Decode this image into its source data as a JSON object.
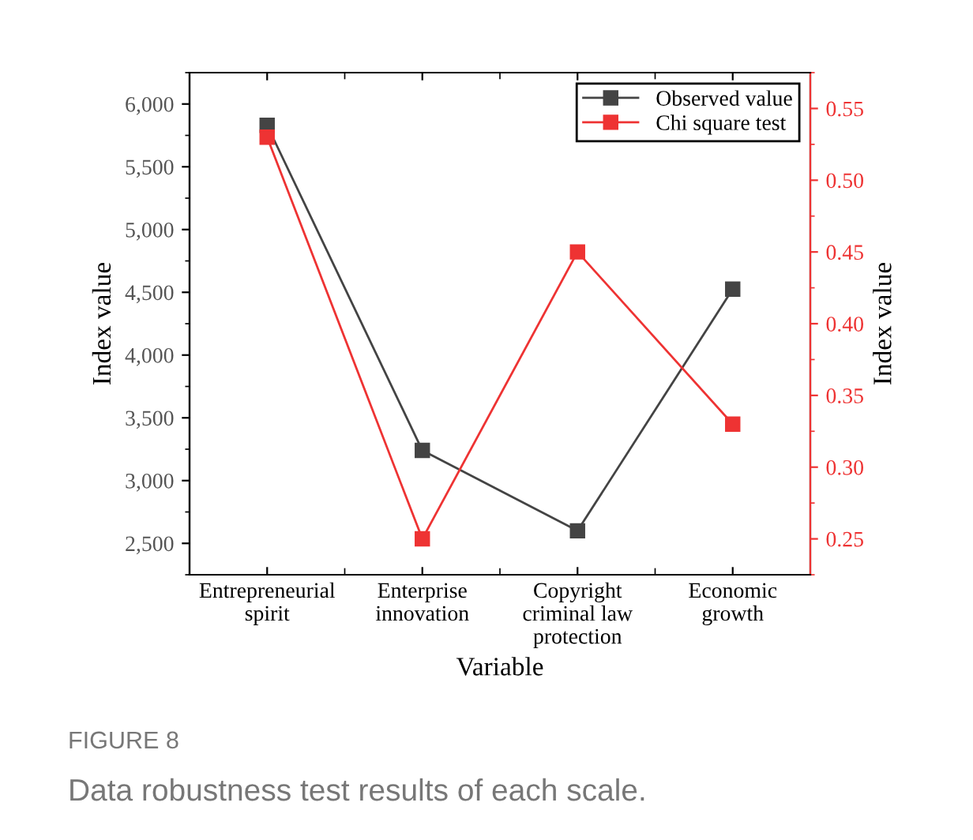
{
  "chart_data": {
    "type": "line",
    "xlabel": "Variable",
    "ylabel": "Index value",
    "y2label": "Index value",
    "categories": [
      "Entrepreneurial\nspirit",
      "Enterprise\ninnovation",
      "Copyright\ncriminal law\nprotection",
      "Economic\ngrowth"
    ],
    "series": [
      {
        "name": "Observed value",
        "color": "#444444",
        "values": [
          5830,
          3240,
          2600,
          4525
        ]
      },
      {
        "name": "Chi square test",
        "color": "#ee3333",
        "axis": "y2",
        "values": [
          0.53,
          0.25,
          0.45,
          0.33
        ]
      }
    ],
    "ylim": [
      2250,
      6250
    ],
    "yticks": [
      {
        "value": 2500,
        "label": "2,500"
      },
      {
        "value": 3000,
        "label": "3,000"
      },
      {
        "value": 3500,
        "label": "3,500"
      },
      {
        "value": 4000,
        "label": "4,000"
      },
      {
        "value": 4500,
        "label": "4,500"
      },
      {
        "value": 5000,
        "label": "5,000"
      },
      {
        "value": 5500,
        "label": "5,500"
      },
      {
        "value": 6000,
        "label": "6,000"
      }
    ],
    "y2lim": [
      0.225,
      0.575
    ],
    "y2ticks": [
      {
        "value": 0.25,
        "label": "0.25"
      },
      {
        "value": 0.3,
        "label": "0.30"
      },
      {
        "value": 0.35,
        "label": "0.35"
      },
      {
        "value": 0.4,
        "label": "0.40"
      },
      {
        "value": 0.45,
        "label": "0.45"
      },
      {
        "value": 0.5,
        "label": "0.50"
      },
      {
        "value": 0.55,
        "label": "0.55"
      }
    ],
    "marker": "square",
    "line_style": "solid",
    "legend": "top right",
    "grid": false,
    "annotations": [
      "FIGURE 8",
      "Data robustness test results of each scale."
    ]
  }
}
